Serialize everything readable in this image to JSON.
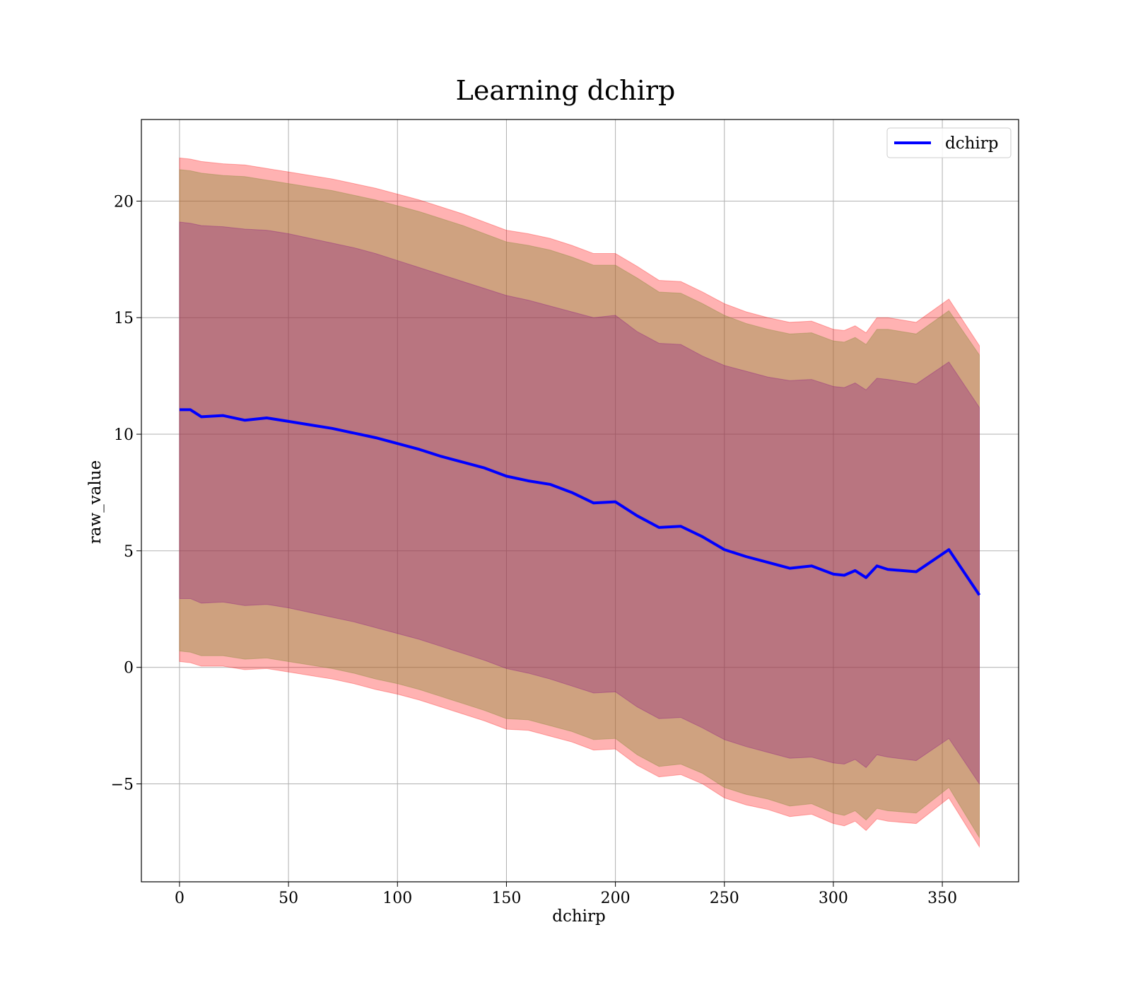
{
  "chart_data": {
    "type": "area",
    "title": "Learning dchirp",
    "xlabel": "dchirp",
    "ylabel": "raw_value",
    "xlim": [
      -17.5,
      385
    ],
    "ylim": [
      -9.2,
      23.5
    ],
    "xticks": [
      0,
      50,
      100,
      150,
      200,
      250,
      300,
      350
    ],
    "yticks": [
      -5,
      0,
      5,
      10,
      15,
      20
    ],
    "ytick_labels": [
      "−5",
      "0",
      "5",
      "10",
      "15",
      "20"
    ],
    "grid": true,
    "legend": {
      "entries": [
        "dchirp"
      ],
      "placement": "top-right"
    },
    "colors": {
      "line": "#0000ff",
      "outer_band": "#ff0000",
      "middle_band": "#8c8c3c",
      "inner_band": "#800080"
    },
    "series": [
      {
        "name": "dchirp",
        "role": "mean",
        "x": [
          0,
          5,
          10,
          20,
          30,
          40,
          50,
          60,
          70,
          80,
          90,
          100,
          110,
          120,
          130,
          140,
          150,
          160,
          170,
          180,
          190,
          200,
          210,
          220,
          230,
          240,
          250,
          260,
          270,
          280,
          290,
          300,
          305,
          310,
          315,
          320,
          325,
          338,
          353,
          367
        ],
        "y": [
          11.05,
          11.05,
          10.75,
          10.8,
          10.6,
          10.7,
          10.55,
          10.4,
          10.25,
          10.05,
          9.85,
          9.6,
          9.35,
          9.05,
          8.8,
          8.55,
          8.2,
          8.0,
          7.85,
          7.5,
          7.05,
          7.1,
          6.5,
          6.0,
          6.05,
          5.6,
          5.05,
          4.75,
          4.5,
          4.25,
          4.35,
          4.0,
          3.95,
          4.15,
          3.85,
          4.35,
          4.2,
          4.1,
          5.05,
          3.1
        ]
      }
    ],
    "bands": {
      "x": [
        0,
        5,
        10,
        20,
        30,
        40,
        50,
        60,
        70,
        80,
        90,
        100,
        110,
        120,
        130,
        140,
        150,
        160,
        170,
        180,
        190,
        200,
        210,
        220,
        230,
        240,
        250,
        260,
        270,
        280,
        290,
        300,
        305,
        310,
        315,
        320,
        325,
        338,
        353,
        367
      ],
      "outer": {
        "upper": [
          21.85,
          21.8,
          21.7,
          21.6,
          21.55,
          21.4,
          21.25,
          21.1,
          20.95,
          20.75,
          20.55,
          20.3,
          20.05,
          19.75,
          19.45,
          19.1,
          18.75,
          18.6,
          18.4,
          18.1,
          17.75,
          17.75,
          17.2,
          16.6,
          16.55,
          16.1,
          15.6,
          15.25,
          15.0,
          14.8,
          14.85,
          14.5,
          14.45,
          14.65,
          14.35,
          15.0,
          15.0,
          14.8,
          15.8,
          13.8
        ],
        "lower": [
          0.25,
          0.2,
          0.05,
          0.05,
          -0.1,
          -0.05,
          -0.2,
          -0.35,
          -0.5,
          -0.7,
          -0.95,
          -1.15,
          -1.4,
          -1.7,
          -2.0,
          -2.3,
          -2.65,
          -2.7,
          -2.95,
          -3.2,
          -3.55,
          -3.5,
          -4.2,
          -4.7,
          -4.6,
          -5.0,
          -5.6,
          -5.9,
          -6.1,
          -6.4,
          -6.3,
          -6.7,
          -6.8,
          -6.6,
          -7.0,
          -6.5,
          -6.6,
          -6.7,
          -5.6,
          -7.7
        ]
      },
      "middle": {
        "upper": [
          21.35,
          21.3,
          21.2,
          21.1,
          21.05,
          20.9,
          20.75,
          20.6,
          20.45,
          20.25,
          20.05,
          19.8,
          19.55,
          19.25,
          18.95,
          18.6,
          18.25,
          18.1,
          17.9,
          17.6,
          17.25,
          17.25,
          16.7,
          16.1,
          16.05,
          15.6,
          15.1,
          14.75,
          14.5,
          14.3,
          14.35,
          14.0,
          13.95,
          14.15,
          13.85,
          14.5,
          14.5,
          14.3,
          15.3,
          13.4
        ],
        "lower": [
          0.7,
          0.65,
          0.5,
          0.5,
          0.35,
          0.4,
          0.25,
          0.1,
          -0.05,
          -0.25,
          -0.5,
          -0.7,
          -0.95,
          -1.25,
          -1.55,
          -1.85,
          -2.2,
          -2.25,
          -2.5,
          -2.75,
          -3.1,
          -3.05,
          -3.75,
          -4.25,
          -4.15,
          -4.55,
          -5.15,
          -5.45,
          -5.65,
          -5.95,
          -5.85,
          -6.25,
          -6.35,
          -6.15,
          -6.55,
          -6.05,
          -6.15,
          -6.25,
          -5.15,
          -7.3
        ]
      },
      "inner": {
        "upper": [
          19.1,
          19.05,
          18.95,
          18.9,
          18.8,
          18.75,
          18.6,
          18.4,
          18.2,
          18.0,
          17.75,
          17.45,
          17.15,
          16.85,
          16.55,
          16.25,
          15.95,
          15.75,
          15.5,
          15.25,
          15.0,
          15.1,
          14.4,
          13.9,
          13.85,
          13.35,
          12.95,
          12.7,
          12.45,
          12.3,
          12.35,
          12.05,
          12.0,
          12.2,
          11.9,
          12.4,
          12.35,
          12.15,
          13.1,
          11.15
        ],
        "lower": [
          2.95,
          2.95,
          2.75,
          2.8,
          2.65,
          2.7,
          2.55,
          2.35,
          2.15,
          1.95,
          1.7,
          1.45,
          1.2,
          0.9,
          0.6,
          0.3,
          -0.05,
          -0.25,
          -0.5,
          -0.8,
          -1.1,
          -1.05,
          -1.7,
          -2.2,
          -2.15,
          -2.6,
          -3.1,
          -3.4,
          -3.65,
          -3.9,
          -3.85,
          -4.1,
          -4.15,
          -3.95,
          -4.3,
          -3.75,
          -3.85,
          -4.0,
          -3.05,
          -5.0
        ]
      }
    }
  }
}
